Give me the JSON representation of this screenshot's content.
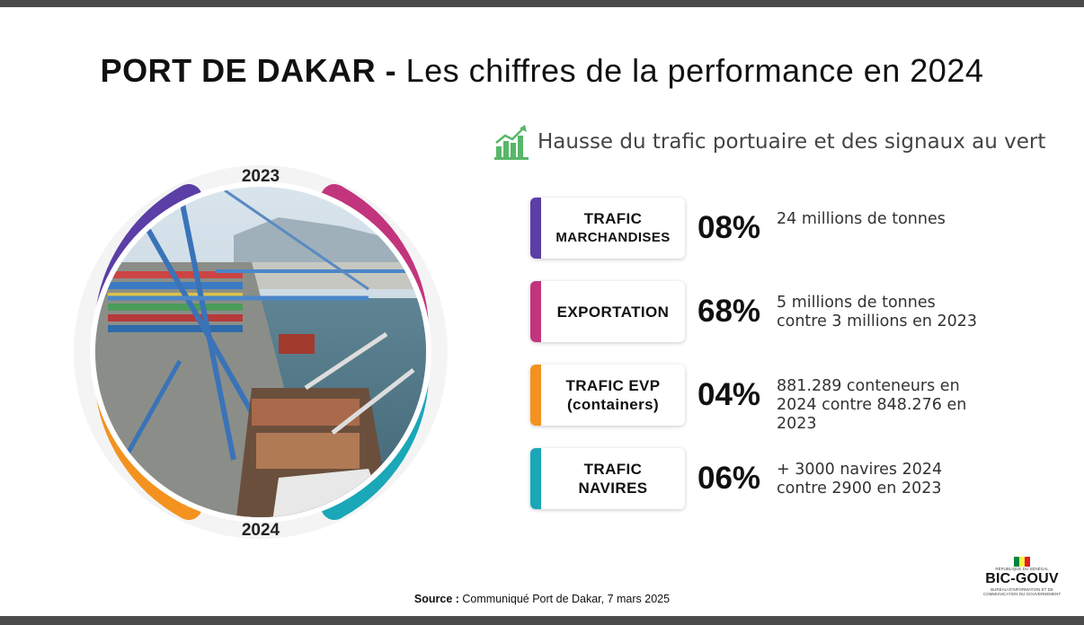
{
  "title": {
    "bold": "PORT DE DAKAR -",
    "light": "Les chiffres de la performance en 2024"
  },
  "hero": {
    "year_top": "2023",
    "year_bottom": "2024"
  },
  "subtitle": {
    "text": "Hausse du trafic portuaire et des signaux au vert",
    "icon": "growth-chart-icon"
  },
  "stats": [
    {
      "label_line1": "TRAFIC",
      "label_line2": "MARCHANDISES",
      "percent": "08%",
      "desc_line1": "24 millions de tonnes",
      "desc_line2": "",
      "desc_line3": "",
      "color": "#5b3ea6"
    },
    {
      "label_line1": "EXPORTATION",
      "label_line2": "",
      "percent": "68%",
      "desc_line1": "5 millions de tonnes",
      "desc_line2": "contre 3 millions en 2023",
      "desc_line3": "",
      "color": "#c2357d"
    },
    {
      "label_line1": "TRAFIC EVP",
      "label_line2": "(containers)",
      "percent": "04%",
      "desc_line1": "881.289 conteneurs en",
      "desc_line2": "2024 contre 848.276 en",
      "desc_line3": "2023",
      "color": "#f3921f"
    },
    {
      "label_line1": "TRAFIC",
      "label_line2": "NAVIRES",
      "percent": "06%",
      "desc_line1": "+ 3000 navires 2024",
      "desc_line2": "contre 2900 en 2023",
      "desc_line3": "",
      "color": "#1aa7b8"
    }
  ],
  "source": {
    "label": "Source :",
    "text": "Communiqué Port de Dakar, 7 mars 2025"
  },
  "logo": {
    "name": "BIC-GOUV",
    "country": "RÉPUBLIQUE DU SÉNÉGAL",
    "tagline": "BUREAU D'INFORMATION ET DE COMMUNICATION DU GOUVERNEMENT"
  }
}
